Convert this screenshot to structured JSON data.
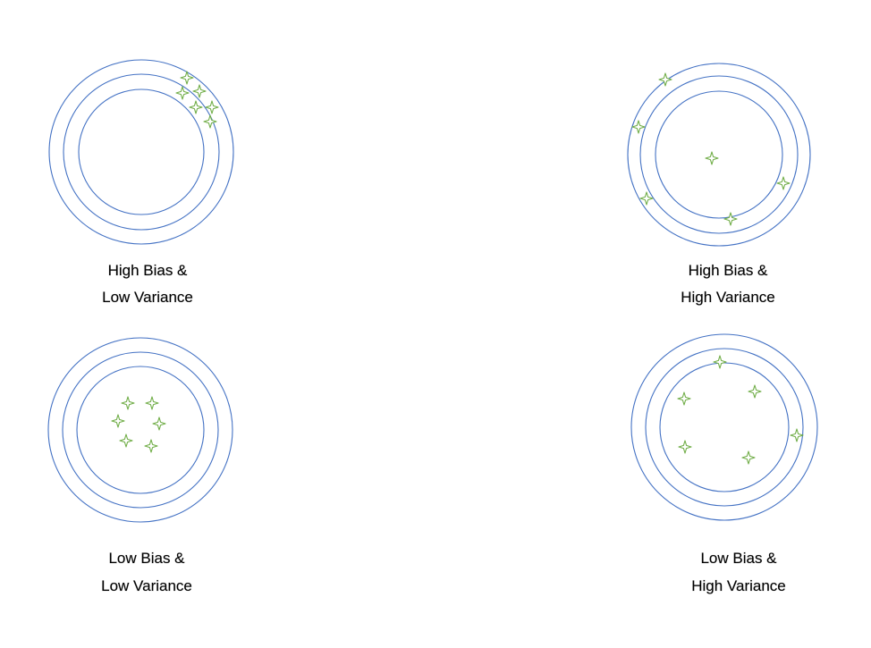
{
  "colors": {
    "ring": "#4472c4",
    "marker": "#70ad47",
    "text": "#000000",
    "background": "#ffffff"
  },
  "marker_icon": "four-point-star-icon",
  "panels": [
    {
      "id": "hb-lv",
      "caption_line1": "High Bias &",
      "caption_line2": "Low Variance"
    },
    {
      "id": "hb-hv",
      "caption_line1": "High Bias &",
      "caption_line2": "High Variance"
    },
    {
      "id": "lb-lv",
      "caption_line1": "Low Bias &",
      "caption_line2": "Low Variance"
    },
    {
      "id": "lb-hv",
      "caption_line1": "Low Bias &",
      "caption_line2": "High Variance"
    }
  ]
}
